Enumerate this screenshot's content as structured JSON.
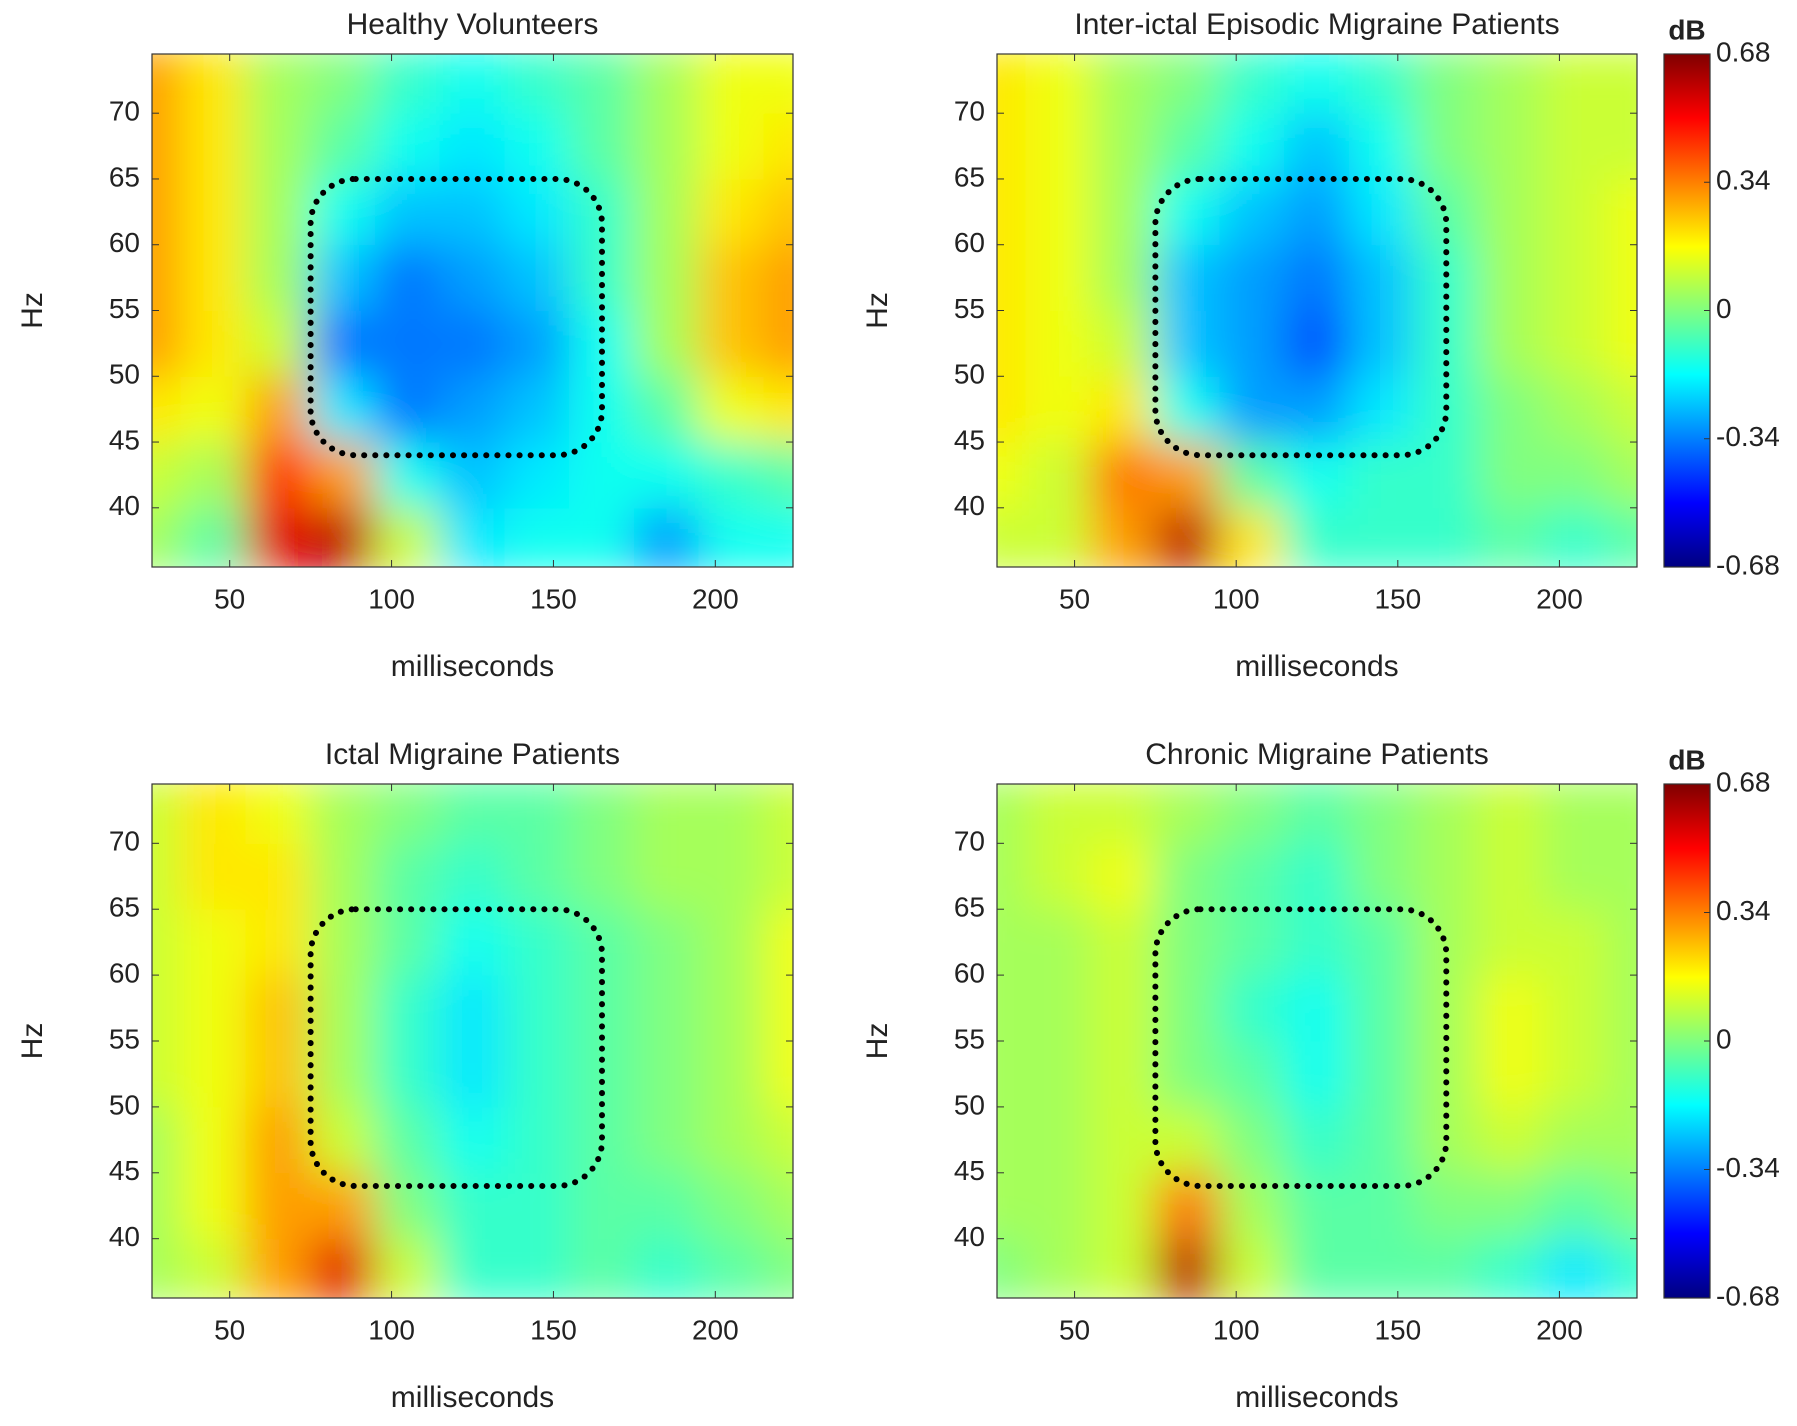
{
  "chart_data": [
    {
      "type": "heatmap",
      "title": "Healthy Volunteers",
      "xlabel": "milliseconds",
      "ylabel": "Hz",
      "x": [
        25,
        45,
        65,
        85,
        105,
        125,
        145,
        165,
        185,
        205,
        225
      ],
      "y": [
        37.5,
        42.5,
        47.5,
        52.5,
        57.5,
        62.5,
        67.5,
        72.5
      ],
      "z": [
        [
          0.05,
          -0.05,
          0.55,
          0.6,
          0.1,
          -0.2,
          -0.15,
          -0.15,
          -0.3,
          -0.15,
          -0.15
        ],
        [
          0.1,
          0.05,
          0.45,
          0.3,
          -0.15,
          -0.25,
          -0.2,
          -0.15,
          -0.15,
          -0.1,
          -0.05
        ],
        [
          0.2,
          0.15,
          0.3,
          -0.2,
          -0.35,
          -0.3,
          -0.25,
          -0.15,
          -0.05,
          0.15,
          0.2
        ],
        [
          0.3,
          0.2,
          0.1,
          -0.35,
          -0.35,
          -0.35,
          -0.3,
          -0.15,
          0.05,
          0.25,
          0.3
        ],
        [
          0.3,
          0.2,
          0.05,
          -0.25,
          -0.35,
          -0.3,
          -0.25,
          -0.1,
          0.05,
          0.25,
          0.3
        ],
        [
          0.3,
          0.2,
          0.05,
          -0.15,
          -0.25,
          -0.25,
          -0.2,
          -0.1,
          0.05,
          0.2,
          0.25
        ],
        [
          0.3,
          0.2,
          0.05,
          -0.05,
          -0.15,
          -0.2,
          -0.15,
          -0.05,
          0.05,
          0.15,
          0.2
        ],
        [
          0.3,
          0.2,
          0.05,
          0,
          -0.1,
          -0.15,
          -0.1,
          -0.05,
          0.05,
          0.15,
          0.15
        ]
      ],
      "xlim": [
        26,
        224
      ],
      "ylim": [
        35.5,
        74.5
      ],
      "xticks": [
        50,
        100,
        150,
        200
      ],
      "yticks": [
        40,
        45,
        50,
        55,
        60,
        65,
        70
      ],
      "colormap": "jet",
      "clim": [
        -0.68,
        0.68
      ],
      "highlight": {
        "x": [
          75,
          165
        ],
        "y": [
          44,
          65
        ]
      }
    },
    {
      "type": "heatmap",
      "title": "Inter-ictal Episodic Migraine Patients",
      "xlabel": "milliseconds",
      "ylabel": "Hz",
      "x": [
        25,
        45,
        65,
        85,
        105,
        125,
        145,
        165,
        185,
        205,
        225
      ],
      "y": [
        37.5,
        42.5,
        47.5,
        52.5,
        57.5,
        62.5,
        67.5,
        72.5
      ],
      "z": [
        [
          0.1,
          0.1,
          0.3,
          0.6,
          0.2,
          -0.1,
          -0.1,
          -0.1,
          -0.05,
          -0.1,
          -0.05
        ],
        [
          0.15,
          0.1,
          0.35,
          0.3,
          -0.05,
          -0.15,
          -0.1,
          -0.1,
          0,
          0,
          0.05
        ],
        [
          0.2,
          0.15,
          0.2,
          -0.15,
          -0.3,
          -0.3,
          -0.2,
          -0.1,
          0,
          0.05,
          0.1
        ],
        [
          0.2,
          0.15,
          0.1,
          -0.25,
          -0.3,
          -0.4,
          -0.25,
          -0.1,
          0.05,
          0.1,
          0.15
        ],
        [
          0.2,
          0.15,
          0.05,
          -0.25,
          -0.3,
          -0.35,
          -0.25,
          -0.1,
          0.05,
          0.1,
          0.15
        ],
        [
          0.2,
          0.15,
          0.05,
          -0.15,
          -0.25,
          -0.3,
          -0.2,
          -0.05,
          0.05,
          0.1,
          0.15
        ],
        [
          0.2,
          0.15,
          0.05,
          -0.05,
          -0.15,
          -0.25,
          -0.15,
          0,
          0.05,
          0.1,
          0.1
        ],
        [
          0.2,
          0.15,
          0.05,
          0,
          -0.1,
          -0.15,
          -0.1,
          0,
          0.05,
          0.1,
          0.1
        ]
      ],
      "xlim": [
        26,
        224
      ],
      "ylim": [
        35.5,
        74.5
      ],
      "xticks": [
        50,
        100,
        150,
        200
      ],
      "yticks": [
        40,
        45,
        50,
        55,
        60,
        65,
        70
      ],
      "colormap": "jet",
      "clim": [
        -0.68,
        0.68
      ],
      "highlight": {
        "x": [
          75,
          165
        ],
        "y": [
          44,
          65
        ]
      },
      "colorbar": {
        "label": "dB",
        "ticks": [
          0.68,
          0.34,
          0,
          -0.34,
          -0.68
        ]
      }
    },
    {
      "type": "heatmap",
      "title": "Ictal Migraine Patients",
      "xlabel": "milliseconds",
      "ylabel": "Hz",
      "x": [
        25,
        45,
        65,
        85,
        105,
        125,
        145,
        165,
        185,
        205,
        225
      ],
      "y": [
        37.5,
        42.5,
        47.5,
        52.5,
        57.5,
        62.5,
        67.5,
        72.5
      ],
      "z": [
        [
          0.05,
          0.1,
          0.3,
          0.55,
          0.1,
          -0.1,
          -0.1,
          -0.05,
          -0.1,
          -0.05,
          0
        ],
        [
          0.05,
          0.15,
          0.3,
          0.3,
          0,
          -0.1,
          -0.1,
          -0.05,
          -0.05,
          0,
          0.05
        ],
        [
          0.05,
          0.15,
          0.3,
          0.1,
          -0.05,
          -0.15,
          -0.1,
          -0.05,
          0,
          0.05,
          0.1
        ],
        [
          0.1,
          0.15,
          0.25,
          0.05,
          -0.1,
          -0.2,
          -0.1,
          -0.05,
          0,
          0.05,
          0.15
        ],
        [
          0.1,
          0.15,
          0.25,
          0.05,
          -0.1,
          -0.2,
          -0.1,
          -0.05,
          0,
          0.05,
          0.15
        ],
        [
          0.1,
          0.15,
          0.2,
          0.05,
          -0.05,
          -0.15,
          -0.1,
          -0.05,
          0,
          0.05,
          0.15
        ],
        [
          0.1,
          0.2,
          0.2,
          0.05,
          -0.05,
          -0.1,
          -0.05,
          0,
          0.05,
          0.05,
          0.1
        ],
        [
          0.1,
          0.2,
          0.15,
          0.05,
          0,
          -0.05,
          -0.05,
          0,
          0.05,
          0.05,
          0.1
        ]
      ],
      "xlim": [
        26,
        224
      ],
      "ylim": [
        35.5,
        74.5
      ],
      "xticks": [
        50,
        100,
        150,
        200
      ],
      "yticks": [
        40,
        45,
        50,
        55,
        60,
        65,
        70
      ],
      "colormap": "jet",
      "clim": [
        -0.68,
        0.68
      ],
      "highlight": {
        "x": [
          75,
          165
        ],
        "y": [
          44,
          65
        ]
      }
    },
    {
      "type": "heatmap",
      "title": "Chronic Migraine Patients",
      "xlabel": "milliseconds",
      "ylabel": "Hz",
      "x": [
        25,
        45,
        65,
        85,
        105,
        125,
        145,
        165,
        185,
        205,
        225
      ],
      "y": [
        37.5,
        42.5,
        47.5,
        52.5,
        57.5,
        62.5,
        67.5,
        72.5
      ],
      "z": [
        [
          0,
          0.05,
          0.1,
          0.6,
          0.1,
          -0.05,
          -0.05,
          -0.05,
          -0.1,
          -0.2,
          -0.1
        ],
        [
          0.05,
          0.05,
          0.1,
          0.35,
          0.05,
          -0.05,
          -0.05,
          0,
          0,
          -0.05,
          0
        ],
        [
          0.05,
          0.05,
          0.1,
          0.1,
          0,
          -0.1,
          -0.05,
          0.05,
          0.1,
          0.05,
          0.05
        ],
        [
          0.05,
          0.05,
          0.1,
          0,
          -0.05,
          -0.15,
          -0.05,
          0.05,
          0.15,
          0.1,
          0.05
        ],
        [
          0.05,
          0.05,
          0.1,
          0,
          -0.1,
          -0.15,
          -0.05,
          0.05,
          0.15,
          0.1,
          0.05
        ],
        [
          0.05,
          0.05,
          0.1,
          0,
          -0.05,
          -0.1,
          -0.05,
          0.05,
          0.1,
          0.1,
          0.05
        ],
        [
          0.05,
          0.1,
          0.15,
          0,
          -0.05,
          -0.1,
          0,
          0.05,
          0.1,
          0.05,
          0.05
        ],
        [
          0.05,
          0.1,
          0.1,
          0.05,
          0,
          -0.05,
          0,
          0.05,
          0.1,
          0.05,
          0.05
        ]
      ],
      "xlim": [
        26,
        224
      ],
      "ylim": [
        35.5,
        74.5
      ],
      "xticks": [
        50,
        100,
        150,
        200
      ],
      "yticks": [
        40,
        45,
        50,
        55,
        60,
        65,
        70
      ],
      "colormap": "jet",
      "clim": [
        -0.68,
        0.68
      ],
      "highlight": {
        "x": [
          75,
          165
        ],
        "y": [
          44,
          65
        ]
      },
      "colorbar": {
        "label": "dB",
        "ticks": [
          0.68,
          0.34,
          0,
          -0.34,
          -0.68
        ]
      }
    }
  ]
}
